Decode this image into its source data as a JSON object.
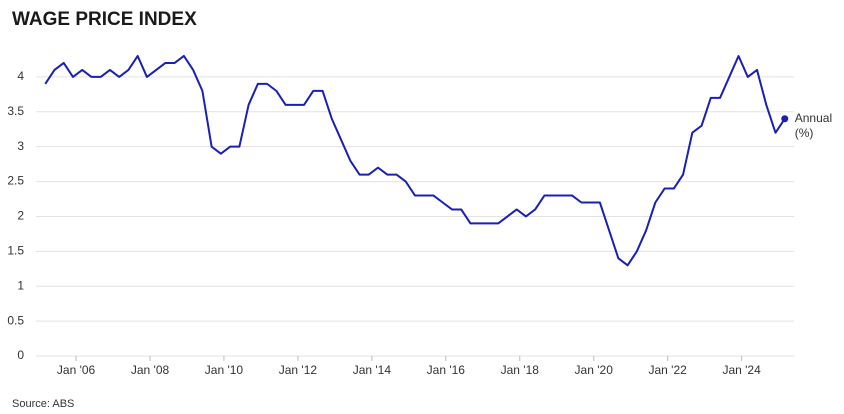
{
  "chart_data": {
    "type": "line",
    "title": "WAGE PRICE INDEX",
    "source": "Source: ABS",
    "x": [
      "2005-03",
      "2005-06",
      "2005-09",
      "2005-12",
      "2006-03",
      "2006-06",
      "2006-09",
      "2006-12",
      "2007-03",
      "2007-06",
      "2007-09",
      "2007-12",
      "2008-03",
      "2008-06",
      "2008-09",
      "2008-12",
      "2009-03",
      "2009-06",
      "2009-09",
      "2009-12",
      "2010-03",
      "2010-06",
      "2010-09",
      "2010-12",
      "2011-03",
      "2011-06",
      "2011-09",
      "2011-12",
      "2012-03",
      "2012-06",
      "2012-09",
      "2012-12",
      "2013-03",
      "2013-06",
      "2013-09",
      "2013-12",
      "2014-03",
      "2014-06",
      "2014-09",
      "2014-12",
      "2015-03",
      "2015-06",
      "2015-09",
      "2015-12",
      "2016-03",
      "2016-06",
      "2016-09",
      "2016-12",
      "2017-03",
      "2017-06",
      "2017-09",
      "2017-12",
      "2018-03",
      "2018-06",
      "2018-09",
      "2018-12",
      "2019-03",
      "2019-06",
      "2019-09",
      "2019-12",
      "2020-03",
      "2020-06",
      "2020-09",
      "2020-12",
      "2021-03",
      "2021-06",
      "2021-09",
      "2021-12",
      "2022-03",
      "2022-06",
      "2022-09",
      "2022-12",
      "2023-03",
      "2023-06",
      "2023-09",
      "2023-12",
      "2024-03",
      "2024-06",
      "2024-09",
      "2024-12",
      "2025-03"
    ],
    "series": [
      {
        "name": "Annual (%)",
        "color": "#1a1fb5",
        "values": [
          3.9,
          4.1,
          4.2,
          4.0,
          4.1,
          4.0,
          4.0,
          4.1,
          4.0,
          4.1,
          4.3,
          4.0,
          4.1,
          4.2,
          4.2,
          4.3,
          4.1,
          3.8,
          3.0,
          2.9,
          3.0,
          3.0,
          3.6,
          3.9,
          3.9,
          3.8,
          3.6,
          3.6,
          3.6,
          3.8,
          3.8,
          3.4,
          3.1,
          2.8,
          2.6,
          2.6,
          2.7,
          2.6,
          2.6,
          2.5,
          2.3,
          2.3,
          2.3,
          2.2,
          2.1,
          2.1,
          1.9,
          1.9,
          1.9,
          1.9,
          2.0,
          2.1,
          2.0,
          2.1,
          2.3,
          2.3,
          2.3,
          2.3,
          2.2,
          2.2,
          2.2,
          1.8,
          1.4,
          1.3,
          1.5,
          1.8,
          2.2,
          2.4,
          2.4,
          2.6,
          3.2,
          3.3,
          3.7,
          3.7,
          4.0,
          4.3,
          4.0,
          4.1,
          3.6,
          3.2,
          3.4
        ]
      }
    ],
    "xlim": [
      "2004-12",
      "2025-06"
    ],
    "xticks": [
      {
        "value": "2006-01",
        "label": "Jan '06"
      },
      {
        "value": "2008-01",
        "label": "Jan '08"
      },
      {
        "value": "2010-01",
        "label": "Jan '10"
      },
      {
        "value": "2012-01",
        "label": "Jan '12"
      },
      {
        "value": "2014-01",
        "label": "Jan '14"
      },
      {
        "value": "2016-01",
        "label": "Jan '16"
      },
      {
        "value": "2018-01",
        "label": "Jan '18"
      },
      {
        "value": "2020-01",
        "label": "Jan '20"
      },
      {
        "value": "2022-01",
        "label": "Jan '22"
      },
      {
        "value": "2024-01",
        "label": "Jan '24"
      }
    ],
    "ylim": [
      0,
      4.4
    ],
    "yticks": [
      0,
      0.5,
      1,
      1.5,
      2,
      2.5,
      3,
      3.5,
      4
    ],
    "grid": true
  }
}
